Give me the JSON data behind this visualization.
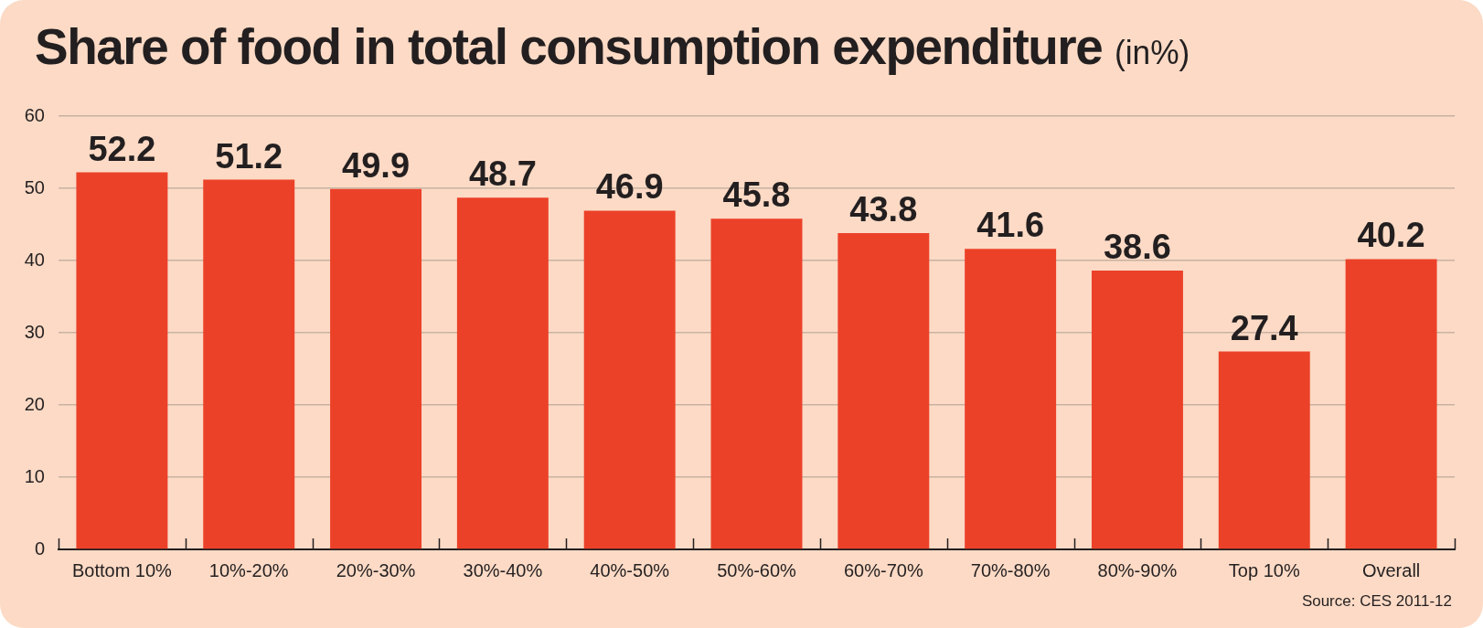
{
  "chart_data": {
    "type": "bar",
    "title": "Share of food in total consumption expenditure",
    "subtitle": "(in%)",
    "categories": [
      "Bottom 10%",
      "10%-20%",
      "20%-30%",
      "30%-40%",
      "40%-50%",
      "50%-60%",
      "60%-70%",
      "70%-80%",
      "80%-90%",
      "Top 10%",
      "Overall"
    ],
    "values": [
      52.2,
      51.2,
      49.9,
      48.7,
      46.9,
      45.8,
      43.8,
      41.6,
      38.6,
      27.4,
      40.2
    ],
    "color": "#ec4129",
    "ylim": [
      0,
      60
    ],
    "yticks": [
      0,
      10,
      20,
      30,
      40,
      50,
      60
    ],
    "grid": "y",
    "data_labels": true,
    "annotations": [
      "Source: CES 2011-12"
    ]
  }
}
